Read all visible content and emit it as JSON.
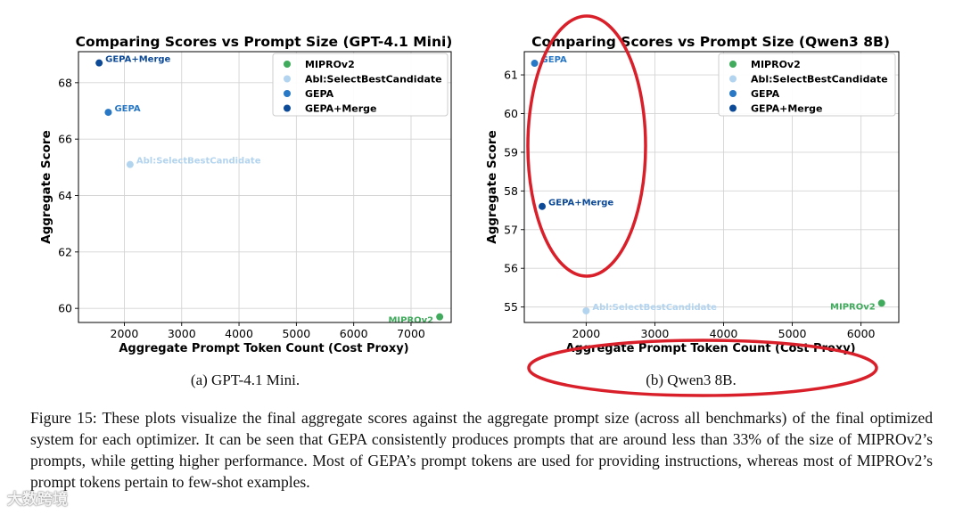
{
  "figure": {
    "caption": "Figure 15: These plots visualize the final aggregate scores against the aggregate prompt size (across all benchmarks) of the final optimized system for each optimizer. It can be seen that GEPA consistently produces prompts that are around less than 33% of the size of MIPROv2’s prompts, while getting higher performance. Most of GEPA’s prompt tokens are used for providing instructions, whereas most of MIPROv2’s prompt tokens pertain to few-shot examples.",
    "watermark": "大数跨境"
  },
  "colors": {
    "MIPROv2": "#41ab5d",
    "Abl:SelectBestCandidate": "#b3d4ef",
    "GEPA": "#2878c6",
    "GEPA+Merge": "#0c4a98",
    "annotation_red": "#d9202a"
  },
  "chart_data": [
    {
      "type": "scatter",
      "title": "Comparing Scores vs Prompt Size (GPT-4.1 Mini)",
      "xlabel": "Aggregate Prompt Token Count (Cost Proxy)",
      "ylabel": "Aggregate Score",
      "xlim": [
        1200,
        7700
      ],
      "ylim": [
        59.5,
        69.1
      ],
      "xticks": [
        2000,
        3000,
        4000,
        5000,
        6000,
        7000
      ],
      "yticks": [
        60,
        62,
        64,
        66,
        68
      ],
      "grid": true,
      "legend_position": "top-right",
      "legend": [
        "MIPROv2",
        "Abl:SelectBestCandidate",
        "GEPA",
        "GEPA+Merge"
      ],
      "subcaption": "(a) GPT-4.1 Mini.",
      "points": [
        {
          "name": "MIPROv2",
          "x": 7500,
          "y": 59.7,
          "label": "MIPROv2",
          "label_side": "left"
        },
        {
          "name": "Abl:SelectBestCandidate",
          "x": 2100,
          "y": 65.1,
          "label": "Abl:SelectBestCandidate",
          "label_side": "right"
        },
        {
          "name": "GEPA",
          "x": 1720,
          "y": 66.95,
          "label": "GEPA",
          "label_side": "right"
        },
        {
          "name": "GEPA+Merge",
          "x": 1560,
          "y": 68.7,
          "label": "GEPA+Merge",
          "label_side": "right"
        }
      ]
    },
    {
      "type": "scatter",
      "title": "Comparing Scores vs Prompt Size (Qwen3 8B)",
      "xlabel": "Aggregate Prompt Token Count (Cost Proxy)",
      "ylabel": "Aggregate Score",
      "xlim": [
        1100,
        6550
      ],
      "ylim": [
        54.6,
        61.6
      ],
      "xticks": [
        2000,
        3000,
        4000,
        5000,
        6000
      ],
      "yticks": [
        55,
        56,
        57,
        58,
        59,
        60,
        61
      ],
      "grid": true,
      "legend_position": "top-right",
      "legend": [
        "MIPROv2",
        "Abl:SelectBestCandidate",
        "GEPA",
        "GEPA+Merge"
      ],
      "subcaption": "(b) Qwen3 8B.",
      "points": [
        {
          "name": "MIPROv2",
          "x": 6300,
          "y": 55.1,
          "label": "MIPROv2",
          "label_side": "left"
        },
        {
          "name": "Abl:SelectBestCandidate",
          "x": 2000,
          "y": 54.9,
          "label": "Abl:SelectBestCandidate",
          "label_side": "right"
        },
        {
          "name": "GEPA",
          "x": 1250,
          "y": 61.3,
          "label": "GEPA",
          "label_side": "right"
        },
        {
          "name": "GEPA+Merge",
          "x": 1360,
          "y": 57.6,
          "label": "GEPA+Merge",
          "label_side": "right"
        }
      ]
    }
  ]
}
